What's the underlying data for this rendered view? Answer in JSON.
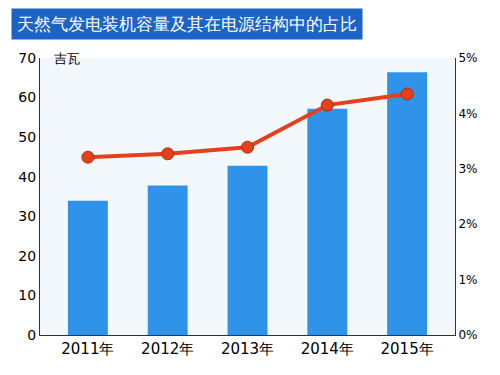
{
  "chart_data": {
    "type": "bar",
    "title": "天然气发电装机容量及其在电源结构中的占比",
    "ylabel": "吉瓦",
    "categories": [
      "2011年",
      "2012年",
      "2013年",
      "2014年",
      "2015年"
    ],
    "series": [
      {
        "type": "bar",
        "color": "#2f93ea",
        "values": [
          33.9,
          37.8,
          42.8,
          57.2,
          66.4
        ]
      },
      {
        "type": "line",
        "axis": "y2",
        "color": "#e4411b",
        "marker": "circle",
        "line_style": "solid",
        "values": [
          3.21,
          3.27,
          3.39,
          4.15,
          4.35
        ]
      }
    ],
    "ylim": [
      0,
      70
    ],
    "yticks": [
      0,
      10,
      20,
      30,
      40,
      50,
      60,
      70
    ],
    "y2lim": [
      0,
      5
    ],
    "y2ticks": [
      {
        "value": 0,
        "label": "0%"
      },
      {
        "value": 1,
        "label": "1%"
      },
      {
        "value": 2,
        "label": "2%"
      },
      {
        "value": 3,
        "label": "3%"
      },
      {
        "value": 4,
        "label": "4%"
      },
      {
        "value": 5,
        "label": "5%"
      }
    ],
    "grid": false
  }
}
